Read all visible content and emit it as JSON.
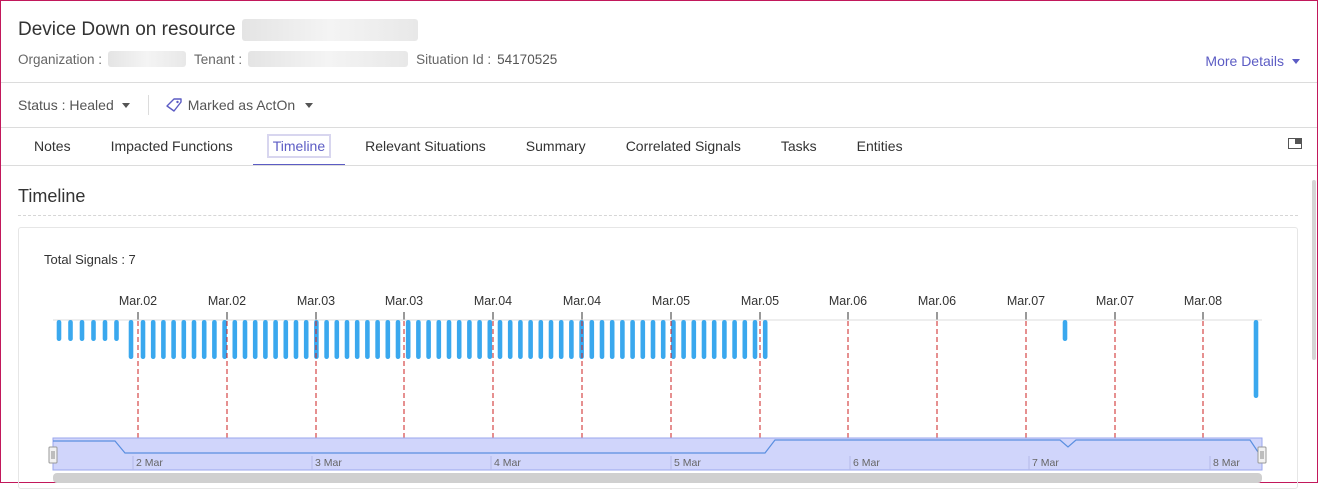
{
  "header": {
    "title": "Device Down on resource",
    "organization_label": "Organization :",
    "tenant_label": "Tenant :",
    "situation_id_label": "Situation Id :",
    "situation_id": "54170525",
    "more_details": "More Details"
  },
  "status_bar": {
    "status": "Status : Healed",
    "marked": "Marked as ActOn"
  },
  "tabs": [
    "Notes",
    "Impacted Functions",
    "Timeline",
    "Relevant Situations",
    "Summary",
    "Correlated Signals",
    "Tasks",
    "Entities"
  ],
  "active_tab": "Timeline",
  "section": {
    "title": "Timeline",
    "total_signals": "Total Signals : 7"
  },
  "chart_data": {
    "type": "bar",
    "x_tick_labels": [
      "Mar.02",
      "Mar.02",
      "Mar.03",
      "Mar.03",
      "Mar.04",
      "Mar.04",
      "Mar.05",
      "Mar.05",
      "Mar.06",
      "Mar.06",
      "Mar.07",
      "Mar.07",
      "Mar.08"
    ],
    "navigator_labels": [
      "2 Mar",
      "3 Mar",
      "4 Mar",
      "5 Mar",
      "6 Mar",
      "7 Mar",
      "8 Mar"
    ],
    "bar_color": "#3aa8ee",
    "marker_color": "#cc2222",
    "navigator_fill": "#d0d5fb",
    "grid": false
  }
}
